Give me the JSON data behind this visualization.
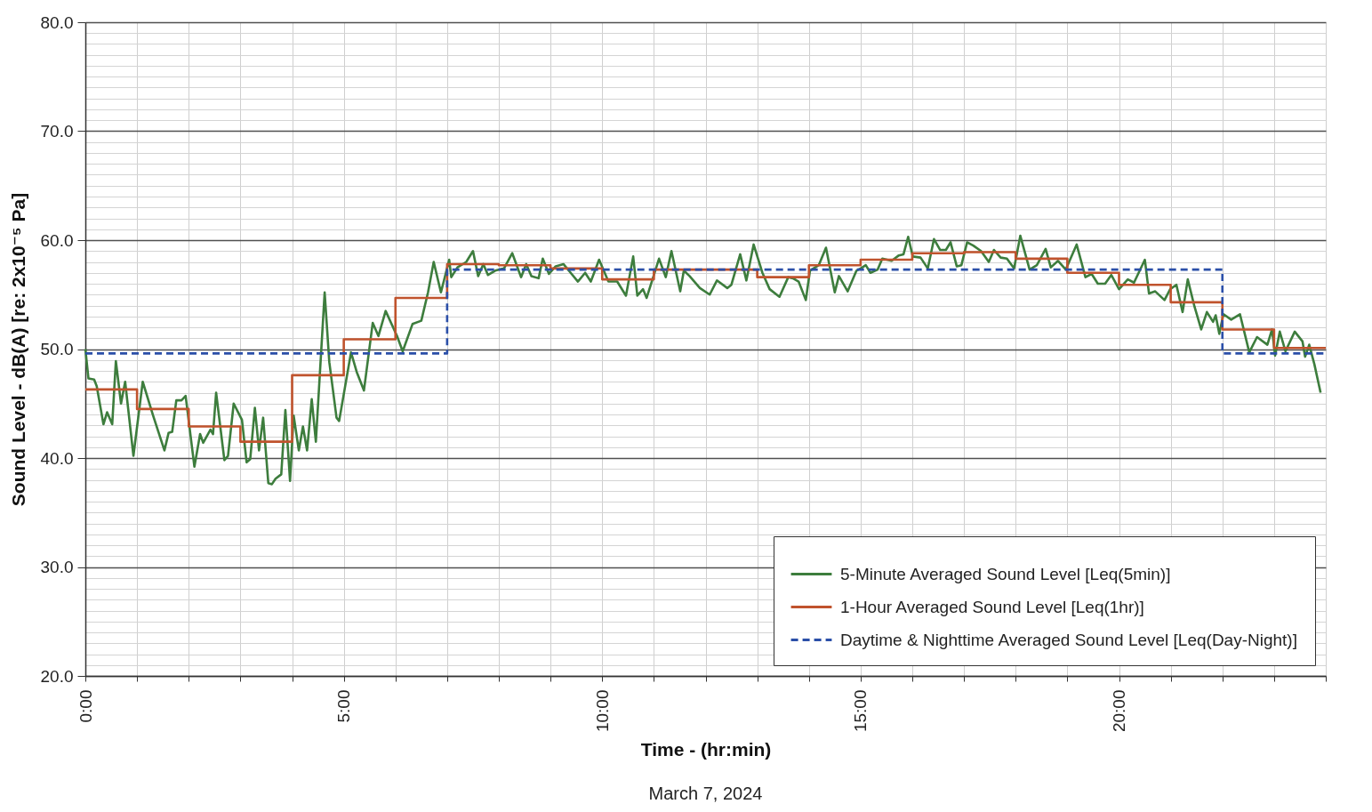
{
  "chart_data": {
    "type": "line",
    "xlabel": "Time - (hr:min)",
    "ylabel": "Sound Level - dB(A) [re: 2x10⁻⁵ Pa]",
    "annotations": [
      "March 7, 2024"
    ],
    "xlim": [
      0,
      24
    ],
    "ylim": [
      20,
      80
    ],
    "xticks": [
      {
        "value": 0,
        "label": "0:00"
      },
      {
        "value": 1,
        "label": null
      },
      {
        "value": 2,
        "label": null
      },
      {
        "value": 3,
        "label": null
      },
      {
        "value": 4,
        "label": null
      },
      {
        "value": 5,
        "label": "5:00"
      },
      {
        "value": 6,
        "label": null
      },
      {
        "value": 7,
        "label": null
      },
      {
        "value": 8,
        "label": null
      },
      {
        "value": 9,
        "label": null
      },
      {
        "value": 10,
        "label": "10:00"
      },
      {
        "value": 11,
        "label": null
      },
      {
        "value": 12,
        "label": null
      },
      {
        "value": 13,
        "label": null
      },
      {
        "value": 14,
        "label": null
      },
      {
        "value": 15,
        "label": "15:00"
      },
      {
        "value": 16,
        "label": null
      },
      {
        "value": 17,
        "label": null
      },
      {
        "value": 18,
        "label": null
      },
      {
        "value": 19,
        "label": null
      },
      {
        "value": 20,
        "label": "20:00"
      },
      {
        "value": 21,
        "label": null
      },
      {
        "value": 22,
        "label": null
      },
      {
        "value": 23,
        "label": null
      },
      {
        "value": 24,
        "label": null
      }
    ],
    "yticks": [
      {
        "value": 20,
        "label": "20.0"
      },
      {
        "value": 21,
        "label": null
      },
      {
        "value": 22,
        "label": null
      },
      {
        "value": 23,
        "label": null
      },
      {
        "value": 24,
        "label": null
      },
      {
        "value": 25,
        "label": null
      },
      {
        "value": 26,
        "label": null
      },
      {
        "value": 27,
        "label": null
      },
      {
        "value": 28,
        "label": null
      },
      {
        "value": 29,
        "label": null
      },
      {
        "value": 30,
        "label": "30.0"
      },
      {
        "value": 31,
        "label": null
      },
      {
        "value": 32,
        "label": null
      },
      {
        "value": 33,
        "label": null
      },
      {
        "value": 34,
        "label": null
      },
      {
        "value": 35,
        "label": null
      },
      {
        "value": 36,
        "label": null
      },
      {
        "value": 37,
        "label": null
      },
      {
        "value": 38,
        "label": null
      },
      {
        "value": 39,
        "label": null
      },
      {
        "value": 40,
        "label": "40.0"
      },
      {
        "value": 41,
        "label": null
      },
      {
        "value": 42,
        "label": null
      },
      {
        "value": 43,
        "label": null
      },
      {
        "value": 44,
        "label": null
      },
      {
        "value": 45,
        "label": null
      },
      {
        "value": 46,
        "label": null
      },
      {
        "value": 47,
        "label": null
      },
      {
        "value": 48,
        "label": null
      },
      {
        "value": 49,
        "label": null
      },
      {
        "value": 50,
        "label": "50.0"
      },
      {
        "value": 51,
        "label": null
      },
      {
        "value": 52,
        "label": null
      },
      {
        "value": 53,
        "label": null
      },
      {
        "value": 54,
        "label": null
      },
      {
        "value": 55,
        "label": null
      },
      {
        "value": 56,
        "label": null
      },
      {
        "value": 57,
        "label": null
      },
      {
        "value": 58,
        "label": null
      },
      {
        "value": 59,
        "label": null
      },
      {
        "value": 60,
        "label": "60.0"
      },
      {
        "value": 61,
        "label": null
      },
      {
        "value": 62,
        "label": null
      },
      {
        "value": 63,
        "label": null
      },
      {
        "value": 64,
        "label": null
      },
      {
        "value": 65,
        "label": null
      },
      {
        "value": 66,
        "label": null
      },
      {
        "value": 67,
        "label": null
      },
      {
        "value": 68,
        "label": null
      },
      {
        "value": 69,
        "label": null
      },
      {
        "value": 70,
        "label": "70.0"
      },
      {
        "value": 71,
        "label": null
      },
      {
        "value": 72,
        "label": null
      },
      {
        "value": 73,
        "label": null
      },
      {
        "value": 74,
        "label": null
      },
      {
        "value": 75,
        "label": null
      },
      {
        "value": 76,
        "label": null
      },
      {
        "value": 77,
        "label": null
      },
      {
        "value": 78,
        "label": null
      },
      {
        "value": 79,
        "label": null
      },
      {
        "value": 80,
        "label": "80.0"
      }
    ],
    "grid": true,
    "legend": "bottom right",
    "series": [
      {
        "name": "5-Minute Averaged Sound Level [Leq(5min)]",
        "color": "#3d7d3d",
        "x": [
          0.0,
          0.06,
          0.17,
          0.22,
          0.35,
          0.42,
          0.52,
          0.59,
          0.69,
          0.77,
          0.93,
          1.11,
          1.31,
          1.53,
          1.61,
          1.68,
          1.76,
          1.86,
          1.94,
          2.11,
          2.22,
          2.28,
          2.42,
          2.47,
          2.53,
          2.69,
          2.76,
          2.87,
          3.03,
          3.12,
          3.19,
          3.28,
          3.36,
          3.44,
          3.54,
          3.61,
          3.68,
          3.79,
          3.87,
          3.96,
          4.03,
          4.13,
          4.21,
          4.29,
          4.38,
          4.46,
          4.63,
          4.72,
          4.86,
          4.91,
          5.14,
          5.25,
          5.39,
          5.56,
          5.67,
          5.81,
          6.03,
          6.14,
          6.33,
          6.5,
          6.63,
          6.74,
          6.88,
          7.04,
          7.08,
          7.2,
          7.37,
          7.5,
          7.6,
          7.7,
          7.79,
          7.93,
          8.1,
          8.26,
          8.43,
          8.53,
          8.63,
          8.77,
          8.85,
          8.97,
          9.1,
          9.25,
          9.39,
          9.53,
          9.67,
          9.78,
          9.94,
          10.12,
          10.29,
          10.46,
          10.6,
          10.68,
          10.79,
          10.86,
          11.1,
          11.23,
          11.34,
          11.51,
          11.58,
          11.69,
          11.89,
          12.08,
          12.22,
          12.42,
          12.5,
          12.67,
          12.79,
          12.93,
          13.1,
          13.24,
          13.43,
          13.6,
          13.69,
          13.8,
          13.94,
          14.02,
          14.19,
          14.33,
          14.5,
          14.58,
          14.75,
          14.92,
          15.0,
          15.1,
          15.19,
          15.33,
          15.42,
          15.6,
          15.74,
          15.83,
          15.92,
          16.01,
          16.16,
          16.3,
          16.42,
          16.54,
          16.65,
          16.74,
          16.86,
          16.95,
          17.06,
          17.18,
          17.33,
          17.48,
          17.58,
          17.71,
          17.83,
          17.97,
          18.09,
          18.27,
          18.41,
          18.58,
          18.68,
          18.82,
          18.97,
          19.18,
          19.35,
          19.47,
          19.59,
          19.73,
          19.85,
          20.0,
          20.17,
          20.29,
          20.5,
          20.58,
          20.7,
          20.88,
          20.99,
          21.11,
          21.23,
          21.33,
          21.46,
          21.59,
          21.7,
          21.82,
          21.87,
          21.94,
          22.02,
          22.17,
          22.34,
          22.52,
          22.67,
          22.87,
          22.96,
          23.02,
          23.11,
          23.22,
          23.4,
          23.55,
          23.6,
          23.68,
          23.78,
          23.9
        ],
        "values": [
          50.0,
          47.3,
          47.2,
          46.6,
          43.1,
          44.2,
          43.1,
          48.9,
          45.0,
          47.0,
          40.2,
          47.0,
          43.9,
          40.7,
          42.3,
          42.4,
          45.3,
          45.3,
          45.7,
          39.2,
          42.2,
          41.4,
          42.6,
          42.2,
          46.0,
          39.8,
          40.2,
          45.0,
          43.5,
          39.6,
          39.9,
          44.6,
          40.7,
          43.7,
          37.7,
          37.6,
          38.1,
          38.5,
          44.4,
          37.9,
          43.9,
          40.7,
          42.9,
          40.7,
          45.4,
          41.5,
          55.2,
          48.8,
          43.7,
          43.4,
          49.7,
          47.9,
          46.2,
          52.4,
          51.2,
          53.5,
          51.2,
          49.8,
          52.3,
          52.6,
          55.2,
          58.0,
          55.2,
          58.2,
          56.6,
          57.5,
          58.0,
          59.0,
          56.7,
          57.8,
          56.8,
          57.2,
          57.4,
          58.8,
          56.6,
          57.8,
          56.7,
          56.5,
          58.3,
          56.9,
          57.6,
          57.8,
          57.0,
          56.2,
          57.0,
          56.2,
          58.2,
          56.2,
          56.2,
          54.9,
          58.5,
          54.9,
          55.5,
          54.7,
          58.3,
          56.6,
          59.0,
          55.3,
          57.2,
          56.7,
          55.6,
          55.0,
          56.3,
          55.6,
          55.9,
          58.7,
          56.3,
          59.6,
          57.0,
          55.5,
          54.8,
          56.6,
          56.5,
          56.2,
          54.5,
          57.2,
          57.7,
          59.3,
          55.2,
          56.7,
          55.3,
          57.2,
          57.4,
          57.7,
          57.0,
          57.3,
          58.3,
          58.1,
          58.6,
          58.7,
          60.3,
          58.5,
          58.4,
          57.4,
          60.1,
          59.1,
          59.1,
          59.8,
          57.6,
          57.7,
          59.8,
          59.5,
          59.0,
          58.0,
          59.1,
          58.4,
          58.3,
          57.4,
          60.4,
          57.3,
          57.7,
          59.2,
          57.5,
          58.1,
          57.3,
          59.6,
          56.6,
          56.9,
          56.0,
          56.0,
          56.8,
          55.5,
          56.4,
          56.1,
          58.2,
          55.1,
          55.3,
          54.5,
          55.5,
          55.9,
          53.4,
          56.4,
          53.9,
          51.8,
          53.4,
          52.5,
          53.1,
          51.4,
          53.2,
          52.7,
          53.2,
          49.7,
          51.1,
          50.4,
          51.8,
          49.4,
          51.6,
          49.8,
          51.6,
          50.7,
          49.3,
          50.4,
          48.6,
          46.0
        ]
      },
      {
        "name": "1-Hour Averaged Sound Level [Leq(1hr)]",
        "color": "#c0532d",
        "type": "step",
        "x": [
          0,
          1,
          2,
          3,
          4,
          5,
          6,
          7,
          8,
          9,
          10,
          11,
          12,
          13,
          14,
          15,
          16,
          17,
          18,
          19,
          20,
          21,
          22,
          23,
          24
        ],
        "values": [
          46.3,
          44.5,
          42.9,
          41.5,
          47.6,
          50.9,
          54.7,
          57.8,
          57.7,
          57.4,
          56.4,
          57.3,
          57.3,
          56.6,
          57.7,
          58.2,
          58.8,
          58.9,
          58.3,
          57.0,
          55.9,
          54.3,
          51.8,
          50.1,
          50.1
        ]
      },
      {
        "name": "Daytime & Nighttime Averaged Sound Level [Leq(Day-Night)]",
        "color": "#2b4fa8",
        "type": "step",
        "line_style": "dashed",
        "x": [
          0,
          7,
          22,
          24
        ],
        "values": [
          49.6,
          57.3,
          49.6,
          49.6
        ]
      }
    ]
  }
}
